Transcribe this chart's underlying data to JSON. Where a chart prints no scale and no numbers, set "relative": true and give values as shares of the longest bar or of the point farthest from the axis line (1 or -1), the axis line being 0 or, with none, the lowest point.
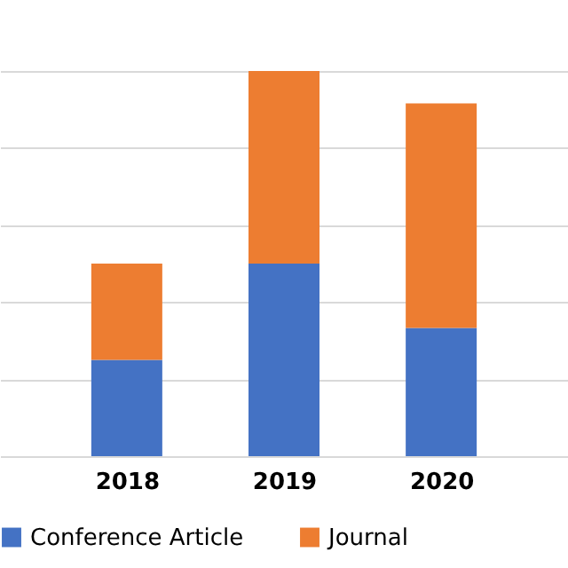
{
  "chart_data": {
    "type": "bar",
    "stacked": true,
    "relative": true,
    "categories": [
      "2018",
      "2019",
      "2020"
    ],
    "series": [
      {
        "name": "Conference Article",
        "color": "#4472c4",
        "values": [
          0.25,
          0.5,
          0.333
        ]
      },
      {
        "name": "Journal",
        "color": "#ed7d31",
        "values": [
          0.25,
          0.5,
          0.583
        ]
      }
    ],
    "grid": "y",
    "legend": "bottom"
  }
}
